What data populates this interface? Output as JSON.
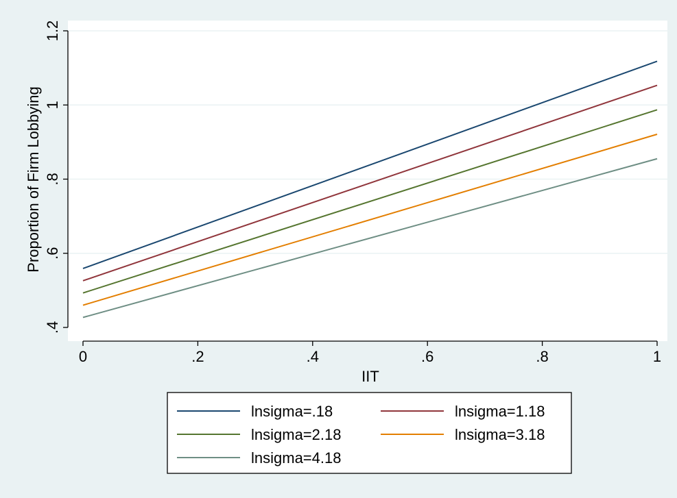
{
  "chart_data": {
    "type": "line",
    "xlabel": "IIT",
    "ylabel": "Proportion of Firm Lobbying",
    "xlim": [
      0,
      1
    ],
    "ylim": [
      0.4,
      1.2
    ],
    "xticks": [
      0,
      0.2,
      0.4,
      0.6,
      0.8,
      1
    ],
    "xtick_labels": [
      "0",
      ".2",
      ".4",
      ".6",
      ".8",
      "1"
    ],
    "yticks": [
      0.4,
      0.6,
      0.8,
      1.0,
      1.2
    ],
    "ytick_labels": [
      ".4",
      ".6",
      ".8",
      "1",
      "1.2"
    ],
    "grid": "horizontal",
    "legend_position": "bottom",
    "x": [
      0,
      1
    ],
    "series": [
      {
        "name": "lnsigma=.18",
        "color": "#1a476f",
        "values": [
          0.559,
          1.118
        ]
      },
      {
        "name": "lnsigma=1.18",
        "color": "#90353b",
        "values": [
          0.526,
          1.053
        ]
      },
      {
        "name": "lnsigma=2.18",
        "color": "#55752f",
        "values": [
          0.493,
          0.987
        ]
      },
      {
        "name": "lnsigma=3.18",
        "color": "#e37e00",
        "values": [
          0.46,
          0.921
        ]
      },
      {
        "name": "lnsigma=4.18",
        "color": "#6e8e84",
        "values": [
          0.427,
          0.855
        ]
      }
    ]
  }
}
